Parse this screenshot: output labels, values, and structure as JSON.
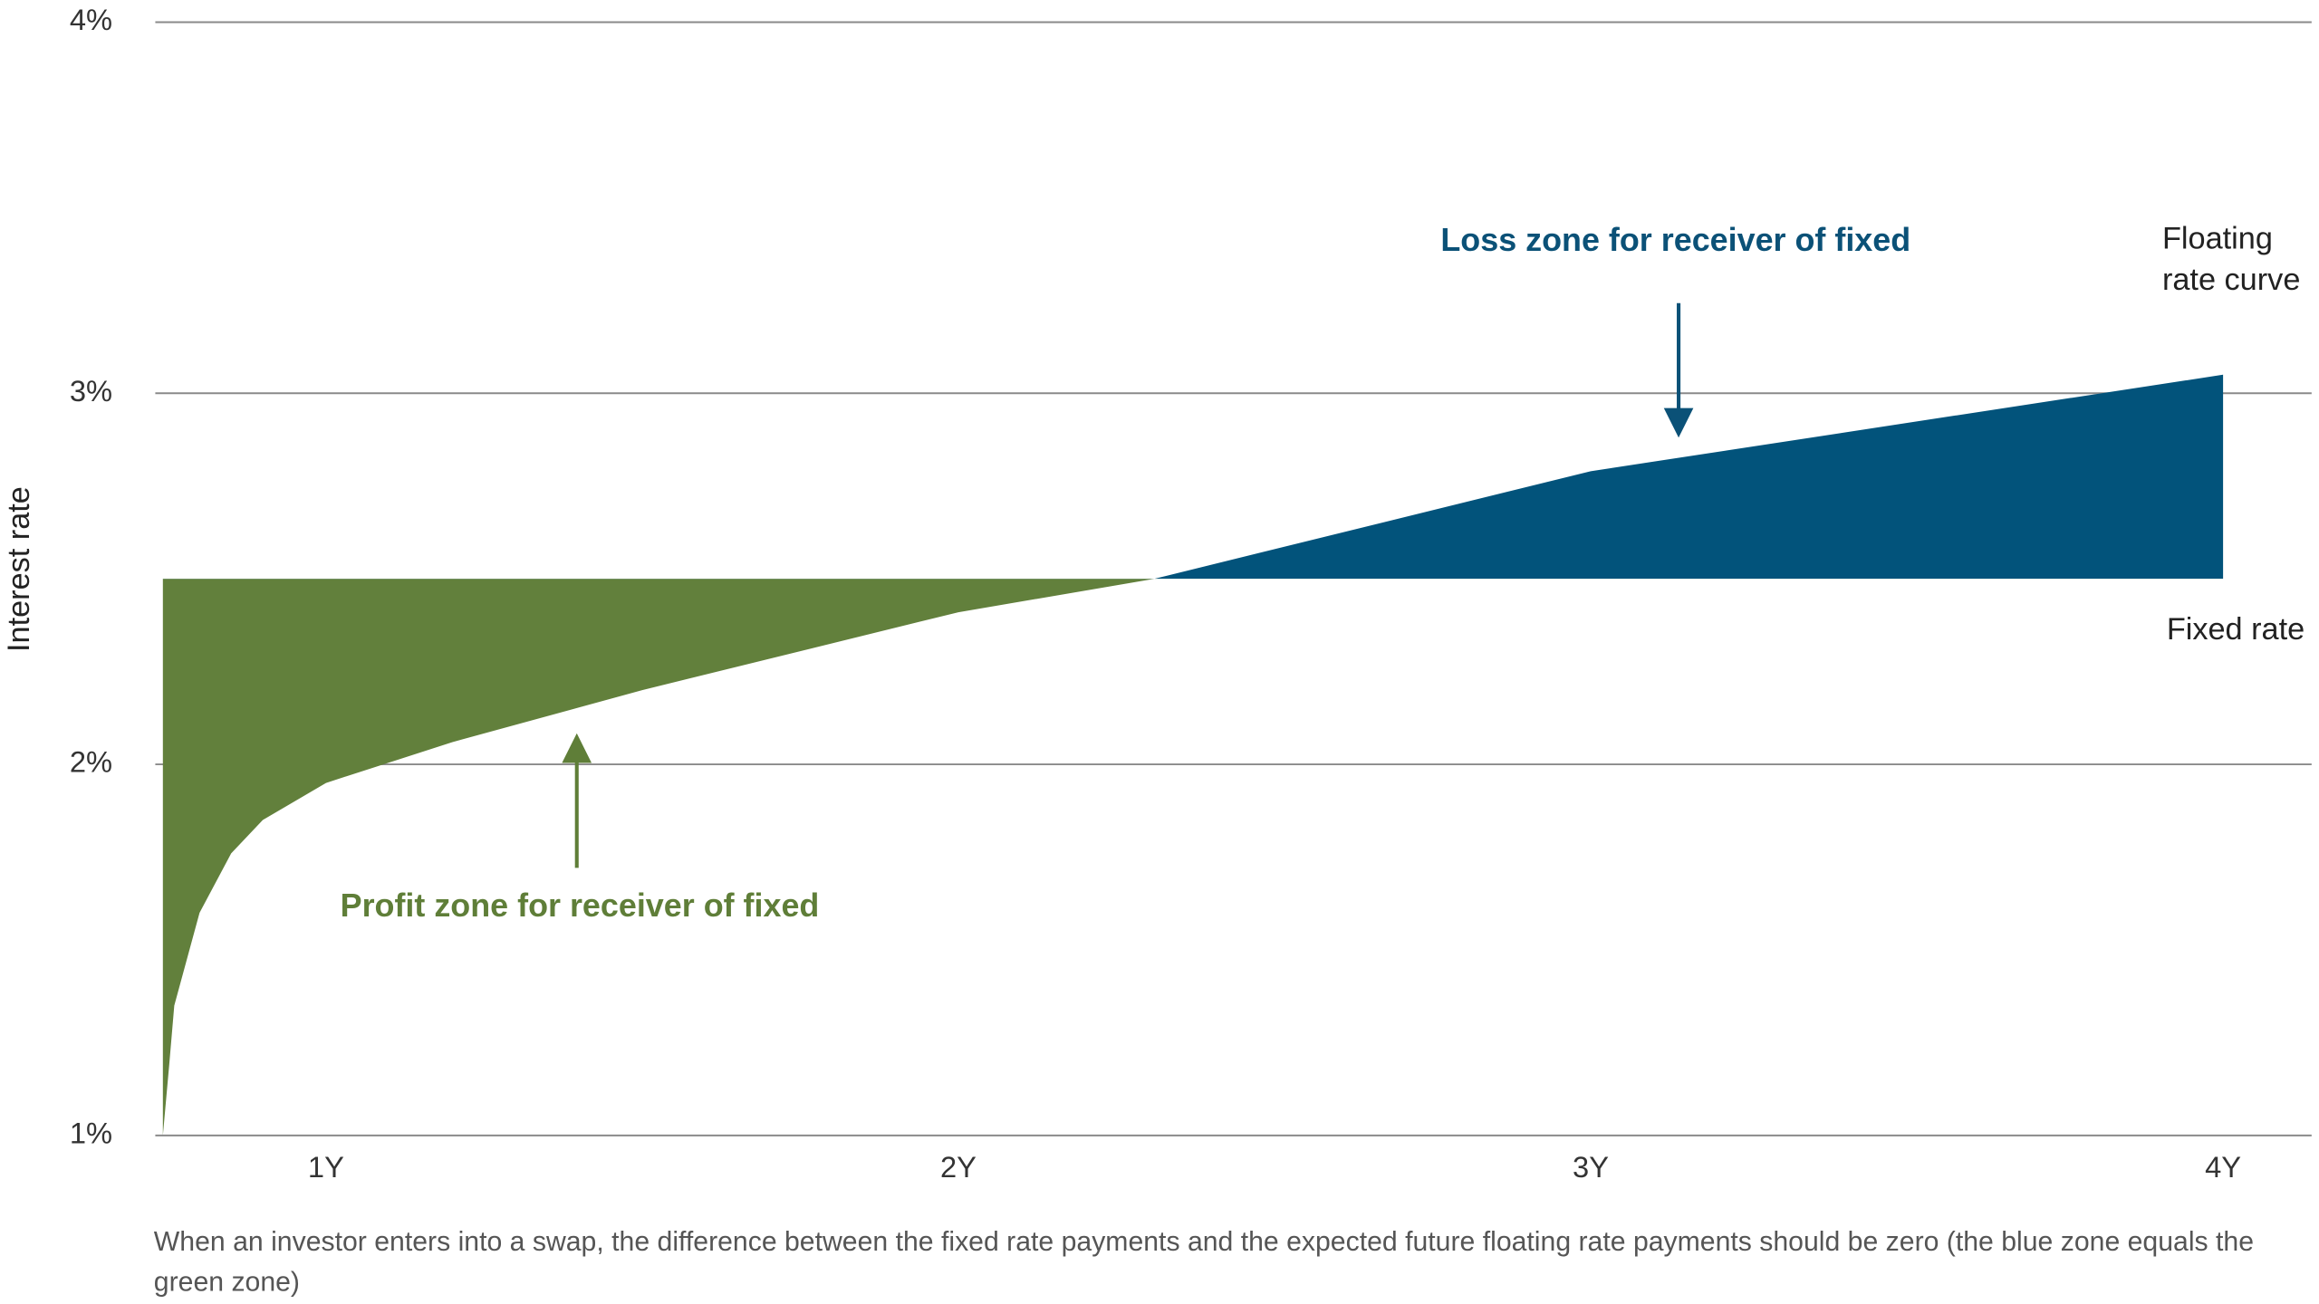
{
  "chart_data": {
    "type": "area",
    "y_label": "Interest rate",
    "x": [
      0.742,
      0.752,
      0.76,
      0.8,
      0.85,
      0.9,
      1.0,
      1.2,
      1.5,
      2.0,
      2.31,
      3.0,
      4.0
    ],
    "series": [
      {
        "values": [
          1.0,
          1.19,
          1.35,
          1.6,
          1.76,
          1.85,
          1.95,
          2.06,
          2.2,
          2.41,
          2.5,
          2.79,
          3.05
        ]
      }
    ],
    "fixed_rate": {
      "value": 2.5,
      "label": "Fixed rate"
    },
    "floating_label": "Floating rate curve",
    "below_color": "#62803c",
    "above_color": "#02537b",
    "annotations": [
      {
        "text": "Loss zone for receiver of fixed",
        "color": "#0b5177"
      },
      {
        "text": "Profit zone for receiver of fixed",
        "color": "#5f7e38"
      }
    ],
    "xlim": [
      0.73,
      4.14
    ],
    "xticks": [
      {
        "value": 1,
        "label": "1Y"
      },
      {
        "value": 2,
        "label": "2Y"
      },
      {
        "value": 3,
        "label": "3Y"
      },
      {
        "value": 4,
        "label": "4Y"
      }
    ],
    "ylim": [
      1,
      4
    ],
    "yticks": [
      {
        "value": 1,
        "label": "1%"
      },
      {
        "value": 2,
        "label": "2%"
      },
      {
        "value": 3,
        "label": "3%"
      },
      {
        "value": 4,
        "label": "4%"
      }
    ],
    "grid": true,
    "caption": "When an investor enters into a swap, the difference between the fixed rate payments and the expected future floating rate payments should be zero (the blue zone equals the green zone)"
  }
}
